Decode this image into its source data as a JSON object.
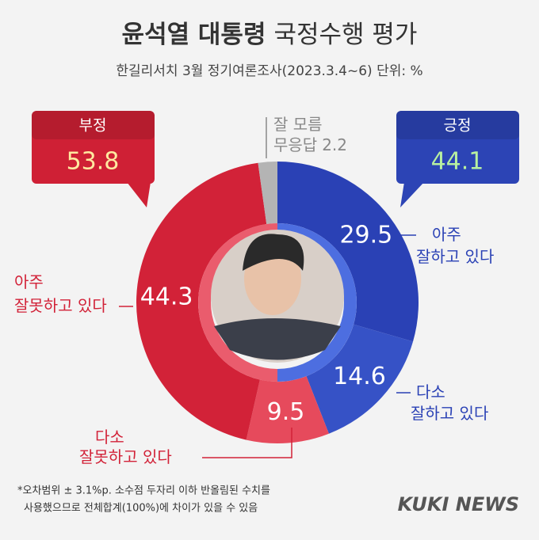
{
  "chart_data": {
    "type": "donut",
    "title": [
      "윤석열 대통령",
      "국정수행 평가"
    ],
    "subtitle": "한길리서치 3월 정기여론조사(2023.3.4~6) 단위: %",
    "segments": [
      {
        "name_lines": [
          "아주",
          "잘하고 있다"
        ],
        "value": 29.5,
        "color": "#2a41b5"
      },
      {
        "name_lines": [
          "다소",
          "잘하고 있다"
        ],
        "value": 14.6,
        "color": "#3652c6"
      },
      {
        "name_lines": [
          "다소",
          "잘못하고 있다"
        ],
        "value": 9.5,
        "color": "#e64a5c"
      },
      {
        "name_lines": [
          "아주",
          "잘못하고 있다"
        ],
        "value": 44.3,
        "color": "#d22238"
      },
      {
        "name_lines": [
          "잘 모름",
          "무응답"
        ],
        "value": 2.2,
        "color": "#b4b4b4"
      }
    ],
    "summary": [
      {
        "label": "부정",
        "value": 53.8,
        "color": "#cf2035"
      },
      {
        "label": "긍정",
        "value": 44.1,
        "color": "#2c44b5"
      }
    ],
    "footnote": [
      "*오차범위 ± 3.1%p. 소수점 두자리 이하 반올림된 수치를",
      "사용했으므로 전체합계(100%)에 차이가 있을 수 있음"
    ],
    "brand": "KUKI NEWS"
  }
}
